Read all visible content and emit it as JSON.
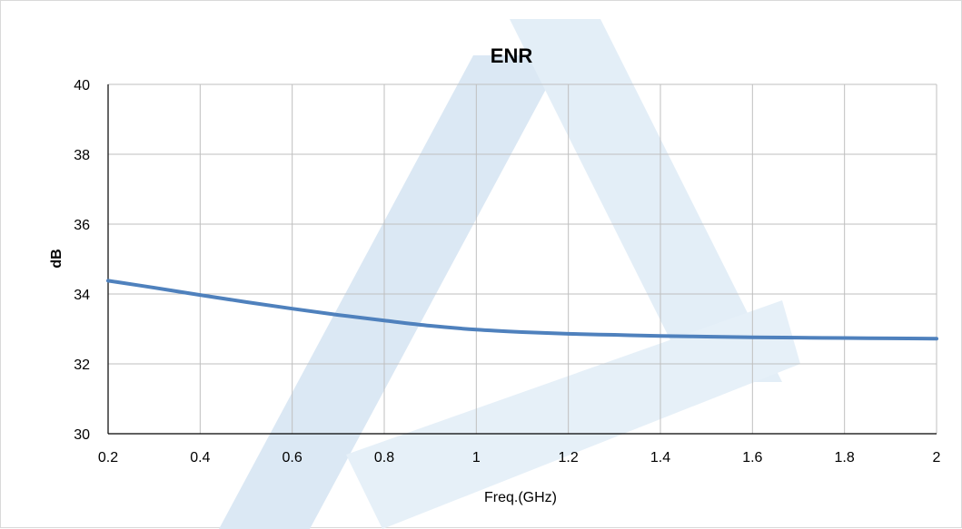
{
  "chart_data": {
    "type": "line",
    "title": "ENR",
    "xlabel": "Freq.(GHz)",
    "ylabel": "dB",
    "xlim": [
      0.2,
      2
    ],
    "ylim": [
      30,
      40
    ],
    "x_ticks": [
      0.2,
      0.4,
      0.6,
      0.8,
      1,
      1.2,
      1.4,
      1.6,
      1.8,
      2
    ],
    "y_ticks": [
      30,
      32,
      34,
      36,
      38,
      40
    ],
    "grid": true,
    "series": [
      {
        "color": "#4f81bd",
        "x": [
          0.2,
          0.3,
          0.4,
          0.5,
          0.6,
          0.7,
          0.8,
          0.9,
          1.0,
          1.1,
          1.2,
          1.3,
          1.4,
          1.5,
          1.6,
          1.7,
          1.8,
          1.9,
          2.0
        ],
        "y": [
          34.38,
          34.18,
          33.97,
          33.77,
          33.58,
          33.4,
          33.24,
          33.09,
          32.98,
          32.91,
          32.86,
          32.83,
          32.8,
          32.78,
          32.76,
          32.75,
          32.74,
          32.73,
          32.72
        ]
      }
    ]
  },
  "colors": {
    "line": "#4f81bd",
    "grid": "#bfbfbf",
    "watermark": "#dbe8f4"
  }
}
